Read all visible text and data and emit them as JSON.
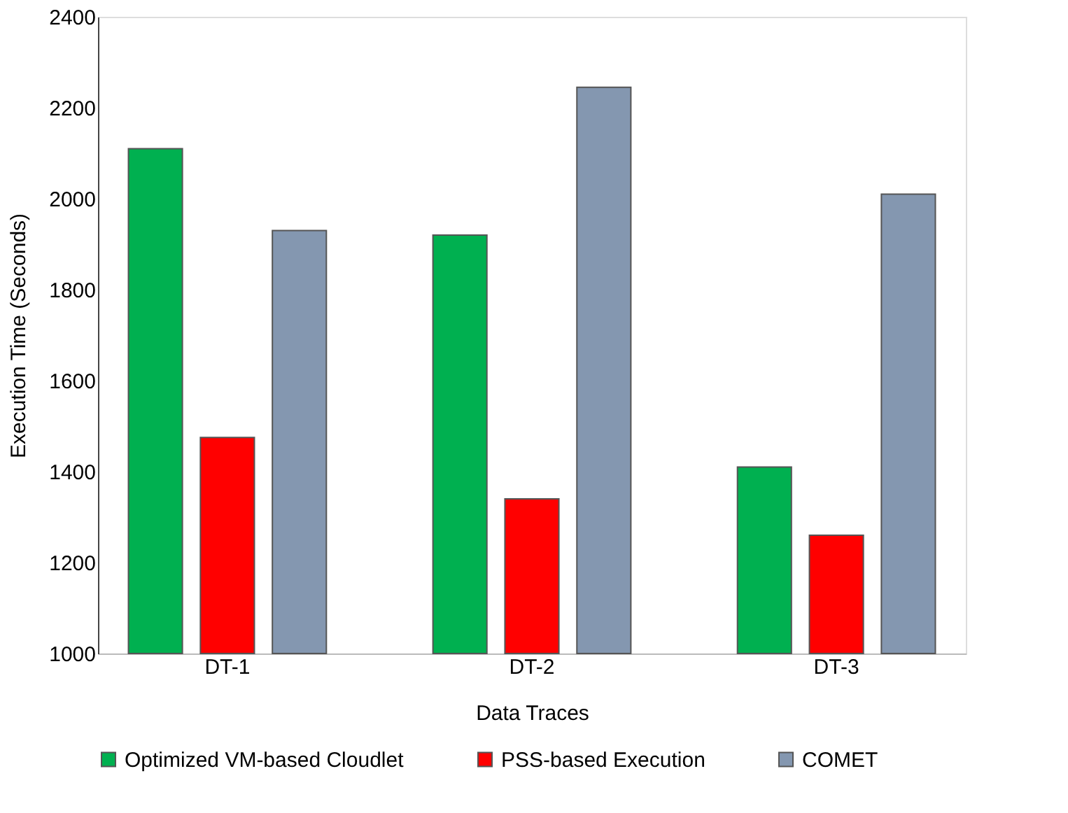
{
  "chart_data": {
    "type": "bar",
    "xlabel": "Data Traces",
    "ylabel": "Execution Time (Seconds)",
    "categories": [
      "DT-1",
      "DT-2",
      "DT-3"
    ],
    "series": [
      {
        "name": "Optimized VM-based Cloudlet",
        "color": "#00b050",
        "values": [
          2110,
          1920,
          1410
        ]
      },
      {
        "name": "PSS-based Execution",
        "color": "#ff0000",
        "values": [
          1475,
          1340,
          1260
        ]
      },
      {
        "name": "COMET",
        "color": "#8497b0",
        "values": [
          1930,
          2245,
          2010
        ]
      }
    ],
    "ylim": [
      1000,
      2400
    ],
    "yticks": [
      1000,
      1200,
      1400,
      1600,
      1800,
      2000,
      2200,
      2400
    ],
    "grid": false,
    "legend": "bottom"
  }
}
